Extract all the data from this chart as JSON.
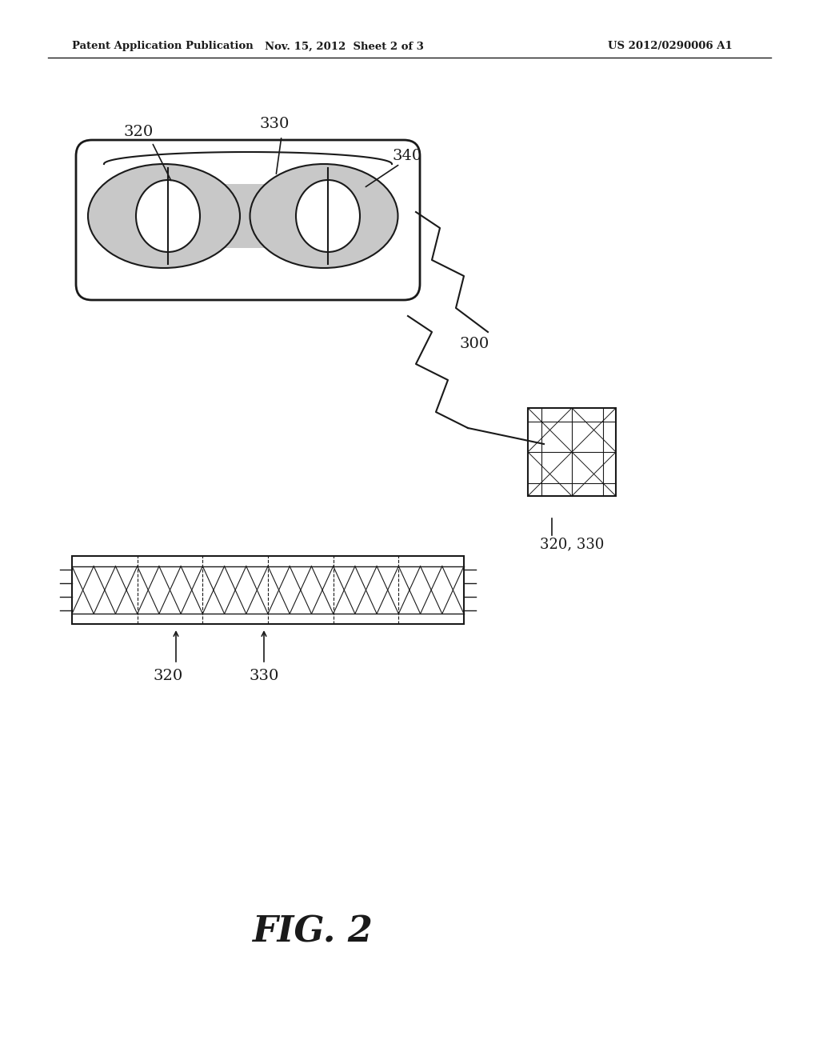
{
  "background_color": "#ffffff",
  "header_left": "Patent Application Publication",
  "header_center": "Nov. 15, 2012  Sheet 2 of 3",
  "header_right": "US 2012/0290006 A1",
  "fig_label": "FIG. 2",
  "label_320_main": "320",
  "label_330_main": "330",
  "label_340": "340",
  "label_300": "300",
  "label_320_bottom": "320",
  "label_330_bottom": "330",
  "label_320_330_small": "320, 330",
  "line_color": "#1a1a1a",
  "dot_color": "#c8c8c8",
  "text_color": "#1a1a1a"
}
